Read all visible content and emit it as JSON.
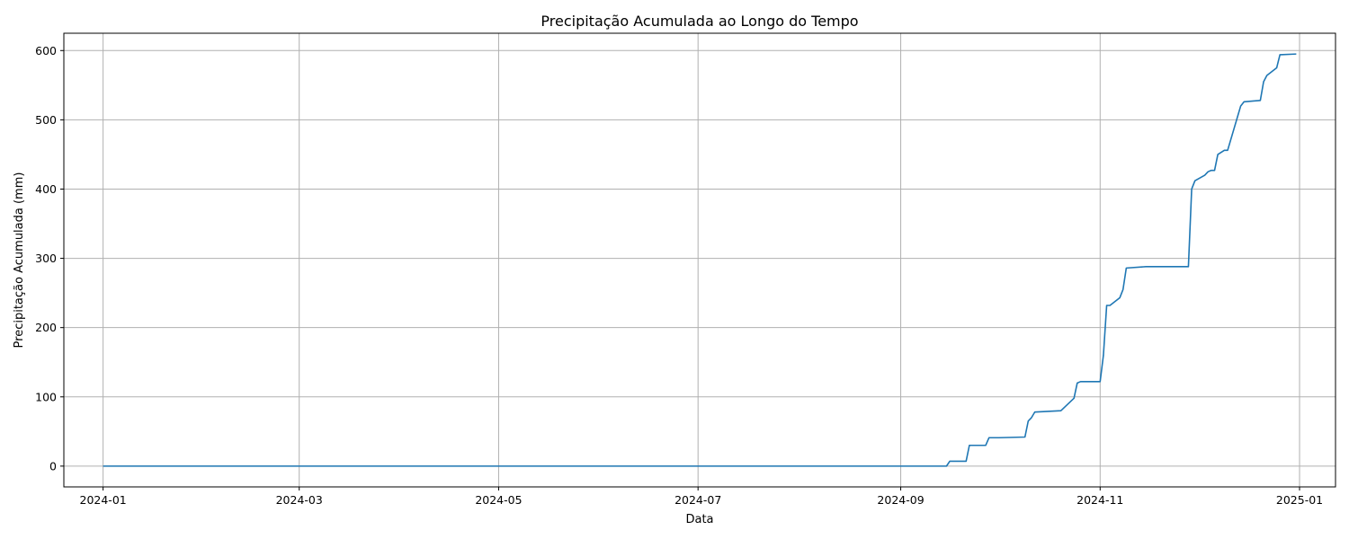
{
  "chart_data": {
    "type": "line",
    "title": "Precipitação Acumulada ao Longo do Tempo",
    "xlabel": "Data",
    "ylabel": "Precipitação Acumulada (mm)",
    "xlim": [
      "2023-12-20",
      "2025-01-12"
    ],
    "ylim": [
      -30,
      625
    ],
    "x_ticks": [
      "2024-01",
      "2024-03",
      "2024-05",
      "2024-07",
      "2024-09",
      "2024-11",
      "2025-01"
    ],
    "y_ticks": [
      0,
      100,
      200,
      300,
      400,
      500,
      600
    ],
    "grid": true,
    "line_color": "#1f77b4",
    "series": [
      {
        "x": [
          "2024-01-01",
          "2024-09-15",
          "2024-09-16",
          "2024-09-21",
          "2024-09-22",
          "2024-09-27",
          "2024-09-28",
          "2024-10-01",
          "2024-10-09",
          "2024-10-10",
          "2024-10-11",
          "2024-10-12",
          "2024-10-20",
          "2024-10-24",
          "2024-10-25",
          "2024-10-26",
          "2024-11-01",
          "2024-11-02",
          "2024-11-03",
          "2024-11-04",
          "2024-11-07",
          "2024-11-08",
          "2024-11-09",
          "2024-11-15",
          "2024-11-28",
          "2024-11-29",
          "2024-11-30",
          "2024-12-03",
          "2024-12-04",
          "2024-12-05",
          "2024-12-06",
          "2024-12-07",
          "2024-12-09",
          "2024-12-10",
          "2024-12-14",
          "2024-12-15",
          "2024-12-20",
          "2024-12-21",
          "2024-12-22",
          "2024-12-25",
          "2024-12-26",
          "2024-12-31"
        ],
        "y": [
          0,
          0,
          7,
          7,
          30,
          30,
          41,
          41,
          42,
          65,
          70,
          78,
          80,
          98,
          120,
          122,
          122,
          160,
          232,
          232,
          243,
          255,
          286,
          288,
          288,
          400,
          412,
          420,
          425,
          427,
          427,
          450,
          456,
          456,
          520,
          526,
          528,
          555,
          564,
          575,
          594,
          595
        ]
      }
    ]
  }
}
